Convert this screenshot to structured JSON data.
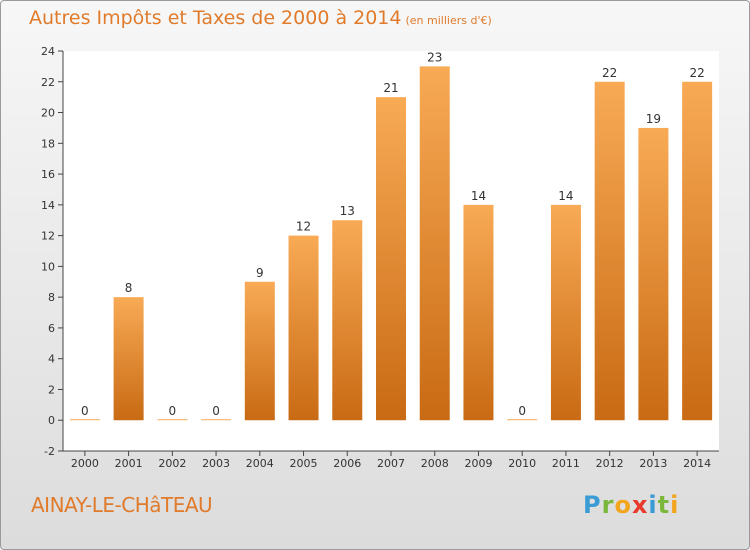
{
  "title": "Autres Impôts et Taxes de 2000 à 2014",
  "title_unit": "(en milliers d'€)",
  "commune": "AINAY-LE-CHâTEAU",
  "logo": {
    "letters": [
      "P",
      "r",
      "o",
      "x",
      "i",
      "t",
      "i"
    ],
    "colors": [
      "#3a9bd5",
      "#7ab83b",
      "#f2a51d",
      "#e83a2c",
      "#3a9bd5",
      "#7ab83b",
      "#f2a51d"
    ]
  },
  "colors": {
    "bar_top": "#f8aa55",
    "bar_bottom": "#c96a14",
    "title": "#e07b2c"
  },
  "chart_data": {
    "type": "bar",
    "categories": [
      "2000",
      "2001",
      "2002",
      "2003",
      "2004",
      "2005",
      "2006",
      "2007",
      "2008",
      "2009",
      "2010",
      "2011",
      "2012",
      "2013",
      "2014"
    ],
    "values": [
      0,
      8,
      0,
      0,
      9,
      12,
      13,
      21,
      23,
      14,
      0,
      14,
      22,
      19,
      22
    ],
    "value_labels": [
      "0",
      "8",
      "0",
      "0",
      "9",
      "12",
      "13",
      "21",
      "23",
      "14",
      "0",
      "14",
      "22",
      "19",
      "22"
    ],
    "ylim": [
      -2,
      24
    ],
    "yticks": [
      -2,
      0,
      2,
      4,
      6,
      8,
      10,
      12,
      14,
      16,
      18,
      20,
      22,
      24
    ],
    "grid": false
  }
}
